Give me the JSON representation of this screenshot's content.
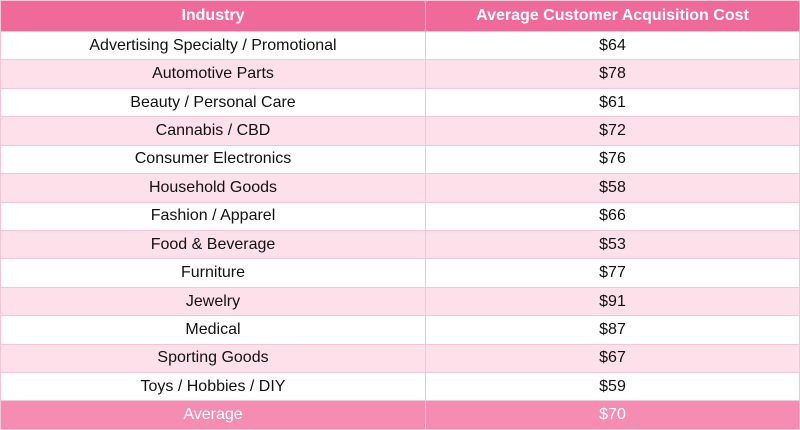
{
  "table": {
    "header": [
      "Industry",
      "Average Customer Acquisition Cost"
    ],
    "rows": [
      [
        "Advertising Specialty / Promotional",
        "$64"
      ],
      [
        "Automotive Parts",
        "$78"
      ],
      [
        "Beauty / Personal Care",
        "$61"
      ],
      [
        "Cannabis / CBD",
        "$72"
      ],
      [
        "Consumer Electronics",
        "$76"
      ],
      [
        "Household Goods",
        "$58"
      ],
      [
        "Fashion / Apparel",
        "$66"
      ],
      [
        "Food & Beverage",
        "$53"
      ],
      [
        "Furniture",
        "$77"
      ],
      [
        "Jewelry",
        "$91"
      ],
      [
        "Medical",
        "$87"
      ],
      [
        "Sporting Goods",
        "$67"
      ],
      [
        "Toys / Hobbies / DIY",
        "$59"
      ]
    ],
    "footer": [
      "Average",
      "$70"
    ]
  }
}
